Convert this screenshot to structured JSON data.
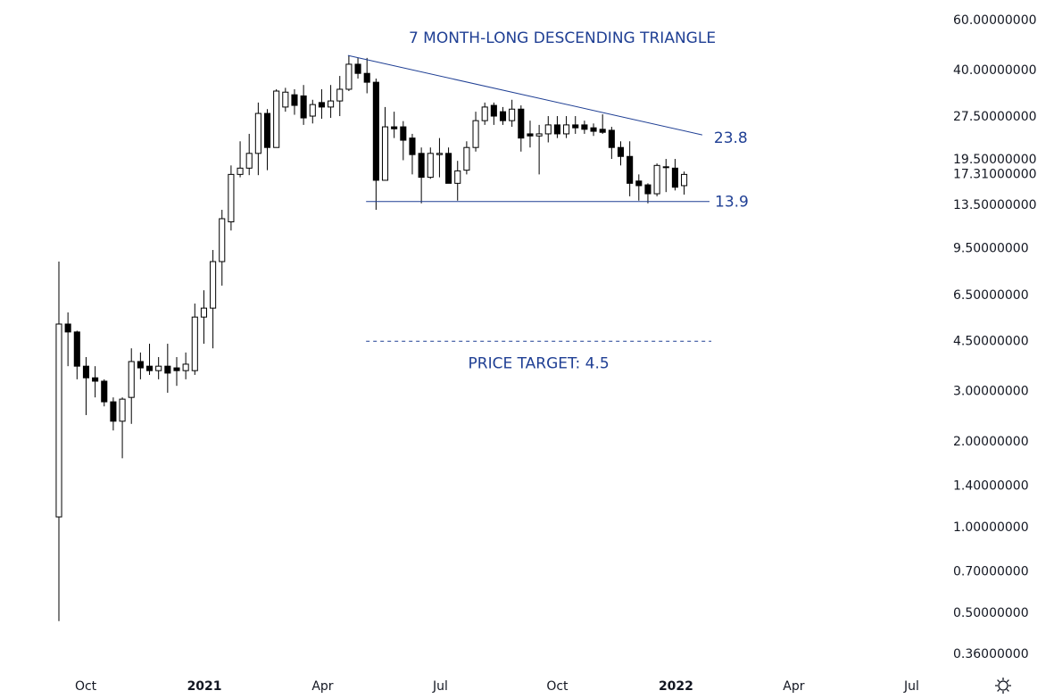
{
  "chart_data": {
    "type": "candlestick",
    "categories": [
      null,
      null,
      null,
      null,
      null,
      null,
      null,
      null,
      null,
      null,
      null,
      null,
      null,
      null,
      null,
      null,
      null,
      null,
      null,
      null,
      null,
      null,
      null,
      null,
      null,
      null,
      null,
      null,
      null,
      null,
      null,
      null,
      null,
      null,
      null,
      null,
      null,
      null,
      null,
      null,
      null,
      null,
      null,
      null,
      null,
      null,
      null,
      null,
      null,
      null,
      null,
      null,
      null,
      null,
      null,
      null,
      null,
      null,
      null,
      null,
      null,
      null,
      null,
      null,
      null,
      null,
      null,
      null,
      null,
      null
    ],
    "open": [
      1.09,
      5.17,
      4.85,
      3.68,
      3.35,
      3.26,
      2.76,
      2.36,
      2.86,
      3.82,
      3.68,
      3.55,
      3.68,
      3.63,
      3.55,
      3.55,
      5.47,
      5.88,
      8.56,
      11.8,
      17.3,
      18.2,
      20.5,
      28.3,
      21.5,
      29.8,
      32.9,
      32.6,
      27.7,
      30.9,
      29.8,
      31.3,
      34.4,
      42.1,
      39.1,
      36.4,
      16.5,
      25.4,
      25.4,
      23.2,
      20.5,
      16.9,
      20.3,
      20.5,
      16.1,
      17.9,
      21.5,
      26.7,
      30.2,
      28.7,
      26.7,
      29.3,
      24.0,
      23.6,
      24.0,
      25.8,
      24.0,
      25.8,
      25.8,
      25.2,
      24.9,
      24.7,
      21.5,
      20.0,
      16.4,
      15.9,
      14.8,
      18.4,
      18.2,
      15.8
    ],
    "high": [
      8.56,
      5.68,
      4.9,
      3.96,
      3.68,
      3.31,
      2.86,
      2.86,
      4.25,
      4.11,
      4.41,
      3.96,
      4.41,
      3.96,
      4.11,
      6.1,
      6.79,
      9.4,
      13.0,
      18.6,
      22.6,
      24.0,
      30.9,
      29.3,
      34.4,
      34.8,
      34.4,
      35.6,
      31.6,
      34.4,
      35.6,
      38.3,
      45.2,
      44.3,
      44.3,
      37.5,
      29.8,
      28.7,
      26.6,
      24.0,
      21.5,
      21.5,
      23.2,
      21.5,
      19.3,
      22.6,
      28.7,
      30.9,
      30.9,
      29.8,
      31.6,
      30.2,
      26.7,
      25.8,
      27.7,
      27.7,
      27.7,
      27.7,
      26.7,
      26.1,
      28.1,
      25.4,
      22.6,
      22.6,
      17.3,
      16.1,
      18.9,
      19.6,
      19.6,
      17.7
    ],
    "low": [
      0.47,
      3.68,
      3.31,
      2.48,
      2.86,
      2.66,
      2.19,
      1.75,
      2.31,
      3.31,
      3.43,
      3.31,
      2.97,
      3.14,
      3.31,
      3.43,
      4.41,
      4.25,
      7.05,
      11.0,
      16.9,
      17.2,
      17.2,
      17.9,
      21.5,
      28.7,
      28.0,
      25.8,
      26.1,
      27.1,
      27.3,
      27.7,
      33.9,
      37.5,
      33.3,
      13.0,
      16.5,
      23.2,
      19.4,
      17.3,
      13.7,
      16.7,
      16.9,
      16.1,
      14.0,
      17.3,
      20.8,
      25.8,
      25.8,
      25.8,
      25.4,
      20.8,
      21.5,
      17.3,
      22.4,
      23.2,
      23.2,
      24.0,
      24.0,
      23.6,
      24.0,
      19.6,
      18.6,
      14.5,
      14.0,
      13.7,
      14.5,
      15.0,
      15.2,
      14.7
    ],
    "close": [
      5.17,
      4.85,
      3.68,
      3.35,
      3.26,
      2.76,
      2.36,
      2.82,
      3.82,
      3.63,
      3.55,
      3.68,
      3.48,
      3.55,
      3.74,
      5.47,
      5.88,
      8.56,
      12.1,
      17.3,
      18.2,
      20.5,
      28.3,
      21.5,
      33.9,
      33.6,
      30.2,
      27.3,
      30.4,
      29.8,
      31.3,
      34.4,
      42.1,
      39.1,
      36.4,
      16.5,
      25.4,
      25.0,
      22.8,
      20.3,
      16.9,
      20.5,
      20.5,
      16.1,
      17.8,
      21.5,
      26.7,
      29.8,
      27.7,
      26.7,
      29.3,
      23.2,
      23.6,
      24.0,
      25.8,
      24.0,
      25.8,
      25.2,
      24.9,
      24.5,
      24.3,
      21.5,
      20.0,
      16.1,
      15.8,
      14.8,
      18.6,
      18.3,
      15.6,
      17.3
    ],
    "up_color": "#ffffff",
    "down_color": "#000000",
    "wick_color": "#000000",
    "log_scale": true,
    "ylim": [
      0.318,
      70.7
    ],
    "yticks": [
      {
        "value": 60,
        "label": "60.00000000"
      },
      {
        "value": 40,
        "label": "40.00000000"
      },
      {
        "value": 27.5,
        "label": "27.50000000"
      },
      {
        "value": 19.5,
        "label": "19.50000000"
      },
      {
        "value": 17.31,
        "label": "17.31000000"
      },
      {
        "value": 13.5,
        "label": "13.50000000"
      },
      {
        "value": 9.5,
        "label": "9.50000000"
      },
      {
        "value": 6.5,
        "label": "6.50000000"
      },
      {
        "value": 4.5,
        "label": "4.50000000"
      },
      {
        "value": 3.0,
        "label": "3.00000000"
      },
      {
        "value": 2.0,
        "label": "2.00000000"
      },
      {
        "value": 1.4,
        "label": "1.40000000"
      },
      {
        "value": 1.0,
        "label": "1.00000000"
      },
      {
        "value": 0.7,
        "label": "0.70000000"
      },
      {
        "value": 0.5,
        "label": "0.50000000"
      },
      {
        "value": 0.36,
        "label": "0.36000000"
      }
    ],
    "xlim": [
      -6.5,
      97.9
    ],
    "xticks": [
      {
        "value": 2.96,
        "label": "Oct"
      },
      {
        "value": 16.06,
        "label": "2021",
        "bold": true
      },
      {
        "value": 29.1,
        "label": "Apr"
      },
      {
        "value": 42.1,
        "label": "Jul"
      },
      {
        "value": 55.0,
        "label": "Oct"
      },
      {
        "value": 68.1,
        "label": "2022",
        "bold": true
      },
      {
        "value": 81.1,
        "label": "Apr"
      },
      {
        "value": 94.1,
        "label": "Jul"
      }
    ],
    "title": "7 MONTH-LONG DESCENDING TRIANGLE",
    "annotation_color": "#1f3f94",
    "resistance": {
      "x": [
        31.9,
        71.0
      ],
      "y": [
        45.2,
        23.8
      ]
    },
    "support": {
      "x": [
        33.9,
        71.8
      ],
      "y": [
        13.9,
        13.9
      ]
    },
    "target": {
      "x": [
        33.9,
        72.0
      ],
      "y": [
        4.5,
        4.5
      ]
    },
    "target_label": "PRICE TARGET: 4.5"
  }
}
